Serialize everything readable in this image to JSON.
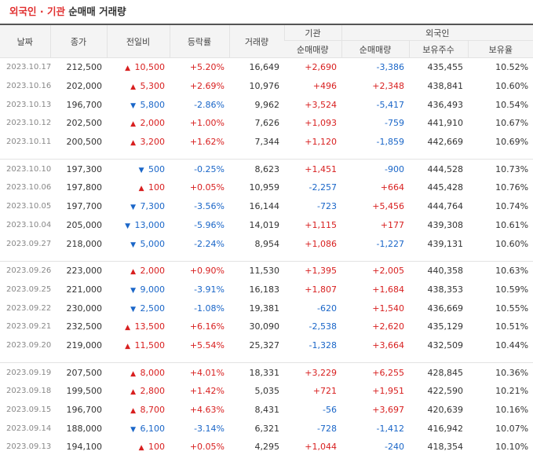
{
  "title": {
    "part1": "외국인 · 기관",
    "part2": " 순매매 거래량"
  },
  "headers": {
    "date": "날짜",
    "close": "종가",
    "change": "전일비",
    "rate": "등락률",
    "volume": "거래량",
    "inst_group": "기관",
    "foreign_group": "외국인",
    "inst_net": "순매매량",
    "foreign_net": "순매매량",
    "foreign_hold": "보유주수",
    "foreign_ratio": "보유율"
  },
  "colors": {
    "up": "#d81f1f",
    "down": "#1a66c8"
  },
  "rows": [
    {
      "date": "2023.10.17",
      "close": "212,500",
      "dir": "up",
      "chg": "10,500",
      "rate": "+5.20%",
      "vol": "16,649",
      "inst": "+2,690",
      "frn": "-3,386",
      "hold": "435,455",
      "ratio": "10.52%"
    },
    {
      "date": "2023.10.16",
      "close": "202,000",
      "dir": "up",
      "chg": "5,300",
      "rate": "+2.69%",
      "vol": "10,976",
      "inst": "+496",
      "frn": "+2,348",
      "hold": "438,841",
      "ratio": "10.60%"
    },
    {
      "date": "2023.10.13",
      "close": "196,700",
      "dir": "down",
      "chg": "5,800",
      "rate": "-2.86%",
      "vol": "9,962",
      "inst": "+3,524",
      "frn": "-5,417",
      "hold": "436,493",
      "ratio": "10.54%"
    },
    {
      "date": "2023.10.12",
      "close": "202,500",
      "dir": "up",
      "chg": "2,000",
      "rate": "+1.00%",
      "vol": "7,626",
      "inst": "+1,093",
      "frn": "-759",
      "hold": "441,910",
      "ratio": "10.67%"
    },
    {
      "date": "2023.10.11",
      "close": "200,500",
      "dir": "up",
      "chg": "3,200",
      "rate": "+1.62%",
      "vol": "7,344",
      "inst": "+1,120",
      "frn": "-1,859",
      "hold": "442,669",
      "ratio": "10.69%"
    },
    {
      "date": "2023.10.10",
      "close": "197,300",
      "dir": "down",
      "chg": "500",
      "rate": "-0.25%",
      "vol": "8,623",
      "inst": "+1,451",
      "frn": "-900",
      "hold": "444,528",
      "ratio": "10.73%"
    },
    {
      "date": "2023.10.06",
      "close": "197,800",
      "dir": "up",
      "chg": "100",
      "rate": "+0.05%",
      "vol": "10,959",
      "inst": "-2,257",
      "frn": "+664",
      "hold": "445,428",
      "ratio": "10.76%"
    },
    {
      "date": "2023.10.05",
      "close": "197,700",
      "dir": "down",
      "chg": "7,300",
      "rate": "-3.56%",
      "vol": "16,144",
      "inst": "-723",
      "frn": "+5,456",
      "hold": "444,764",
      "ratio": "10.74%"
    },
    {
      "date": "2023.10.04",
      "close": "205,000",
      "dir": "down",
      "chg": "13,000",
      "rate": "-5.96%",
      "vol": "14,019",
      "inst": "+1,115",
      "frn": "+177",
      "hold": "439,308",
      "ratio": "10.61%"
    },
    {
      "date": "2023.09.27",
      "close": "218,000",
      "dir": "down",
      "chg": "5,000",
      "rate": "-2.24%",
      "vol": "8,954",
      "inst": "+1,086",
      "frn": "-1,227",
      "hold": "439,131",
      "ratio": "10.60%"
    },
    {
      "date": "2023.09.26",
      "close": "223,000",
      "dir": "up",
      "chg": "2,000",
      "rate": "+0.90%",
      "vol": "11,530",
      "inst": "+1,395",
      "frn": "+2,005",
      "hold": "440,358",
      "ratio": "10.63%"
    },
    {
      "date": "2023.09.25",
      "close": "221,000",
      "dir": "down",
      "chg": "9,000",
      "rate": "-3.91%",
      "vol": "16,183",
      "inst": "+1,807",
      "frn": "+1,684",
      "hold": "438,353",
      "ratio": "10.59%"
    },
    {
      "date": "2023.09.22",
      "close": "230,000",
      "dir": "down",
      "chg": "2,500",
      "rate": "-1.08%",
      "vol": "19,381",
      "inst": "-620",
      "frn": "+1,540",
      "hold": "436,669",
      "ratio": "10.55%"
    },
    {
      "date": "2023.09.21",
      "close": "232,500",
      "dir": "up",
      "chg": "13,500",
      "rate": "+6.16%",
      "vol": "30,090",
      "inst": "-2,538",
      "frn": "+2,620",
      "hold": "435,129",
      "ratio": "10.51%"
    },
    {
      "date": "2023.09.20",
      "close": "219,000",
      "dir": "up",
      "chg": "11,500",
      "rate": "+5.54%",
      "vol": "25,327",
      "inst": "-1,328",
      "frn": "+3,664",
      "hold": "432,509",
      "ratio": "10.44%"
    },
    {
      "date": "2023.09.19",
      "close": "207,500",
      "dir": "up",
      "chg": "8,000",
      "rate": "+4.01%",
      "vol": "18,331",
      "inst": "+3,229",
      "frn": "+6,255",
      "hold": "428,845",
      "ratio": "10.36%"
    },
    {
      "date": "2023.09.18",
      "close": "199,500",
      "dir": "up",
      "chg": "2,800",
      "rate": "+1.42%",
      "vol": "5,035",
      "inst": "+721",
      "frn": "+1,951",
      "hold": "422,590",
      "ratio": "10.21%"
    },
    {
      "date": "2023.09.15",
      "close": "196,700",
      "dir": "up",
      "chg": "8,700",
      "rate": "+4.63%",
      "vol": "8,431",
      "inst": "-56",
      "frn": "+3,697",
      "hold": "420,639",
      "ratio": "10.16%"
    },
    {
      "date": "2023.09.14",
      "close": "188,000",
      "dir": "down",
      "chg": "6,100",
      "rate": "-3.14%",
      "vol": "6,321",
      "inst": "-728",
      "frn": "-1,412",
      "hold": "416,942",
      "ratio": "10.07%"
    },
    {
      "date": "2023.09.13",
      "close": "194,100",
      "dir": "up",
      "chg": "100",
      "rate": "+0.05%",
      "vol": "4,295",
      "inst": "+1,044",
      "frn": "-240",
      "hold": "418,354",
      "ratio": "10.10%"
    }
  ]
}
